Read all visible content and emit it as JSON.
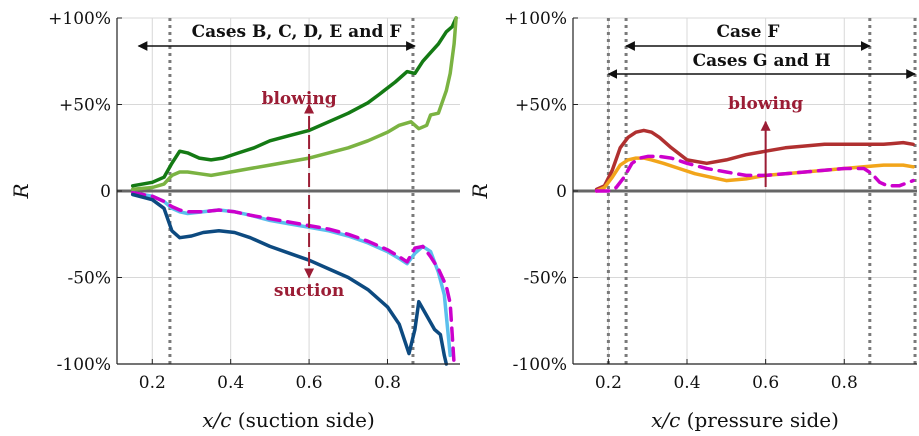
{
  "chart_data": [
    {
      "type": "line",
      "xlabel": "x/c (suction side)",
      "ylabel": "R",
      "xlim": [
        0.11,
        0.985
      ],
      "ylim": [
        -100,
        100
      ],
      "xticks": [
        "0.2",
        "0.4",
        "0.6",
        "0.8"
      ],
      "yticks": [
        "+100%",
        "+50%",
        "0",
        "-50%",
        "-100%"
      ],
      "grid": true,
      "vlines": [
        0.245,
        0.865
      ],
      "span_label": "Cases B, C, D, E and F",
      "span": [
        0.165,
        0.87
      ],
      "annotations": {
        "upper": "blowing",
        "lower": "suction",
        "arrow_x": 0.6
      },
      "series": [
        {
          "color": "#147a14",
          "x": [
            0.15,
            0.2,
            0.23,
            0.25,
            0.27,
            0.29,
            0.32,
            0.35,
            0.38,
            0.42,
            0.46,
            0.5,
            0.55,
            0.6,
            0.65,
            0.7,
            0.75,
            0.78,
            0.82,
            0.85,
            0.87,
            0.89,
            0.91,
            0.93,
            0.95,
            0.965,
            0.975
          ],
          "y": [
            3,
            5,
            8,
            16,
            23,
            22,
            19,
            18,
            19,
            22,
            25,
            29,
            32,
            35,
            40,
            45,
            51,
            56,
            63,
            69,
            68,
            75,
            80,
            85,
            92,
            95,
            100
          ]
        },
        {
          "color": "#7bb342",
          "x": [
            0.15,
            0.2,
            0.23,
            0.25,
            0.27,
            0.29,
            0.32,
            0.35,
            0.4,
            0.45,
            0.5,
            0.55,
            0.6,
            0.65,
            0.7,
            0.75,
            0.8,
            0.83,
            0.86,
            0.88,
            0.9,
            0.91,
            0.93,
            0.95,
            0.96,
            0.97,
            0.975
          ],
          "y": [
            1,
            2,
            4,
            9,
            11,
            11,
            10,
            9,
            11,
            13,
            15,
            17,
            19,
            22,
            25,
            29,
            34,
            38,
            40,
            36,
            38,
            44,
            45,
            58,
            68,
            85,
            100
          ]
        },
        {
          "color": "#5bbfec",
          "x": [
            0.15,
            0.2,
            0.23,
            0.25,
            0.27,
            0.29,
            0.33,
            0.37,
            0.41,
            0.45,
            0.5,
            0.55,
            0.6,
            0.65,
            0.7,
            0.75,
            0.8,
            0.83,
            0.85,
            0.87,
            0.89,
            0.91,
            0.93,
            0.945,
            0.96
          ],
          "y": [
            -1,
            -3,
            -6,
            -10,
            -12,
            -13,
            -12,
            -11,
            -12,
            -14,
            -17,
            -19,
            -21,
            -23,
            -26,
            -30,
            -35,
            -39,
            -42,
            -36,
            -32,
            -35,
            -47,
            -60,
            -95
          ]
        },
        {
          "color": "#cc00cc",
          "dashed": true,
          "x": [
            0.15,
            0.2,
            0.23,
            0.25,
            0.27,
            0.29,
            0.33,
            0.37,
            0.41,
            0.45,
            0.5,
            0.55,
            0.6,
            0.65,
            0.7,
            0.75,
            0.8,
            0.83,
            0.85,
            0.87,
            0.89,
            0.91,
            0.93,
            0.95,
            0.96,
            0.97
          ],
          "y": [
            -1,
            -3,
            -6,
            -9,
            -11,
            -12,
            -12,
            -11,
            -12,
            -14,
            -16,
            -18,
            -20,
            -22,
            -25,
            -29,
            -34,
            -38,
            -41,
            -33,
            -32,
            -38,
            -45,
            -55,
            -65,
            -100
          ]
        },
        {
          "color": "#0d4a80",
          "x": [
            0.15,
            0.2,
            0.23,
            0.25,
            0.27,
            0.3,
            0.33,
            0.37,
            0.41,
            0.45,
            0.5,
            0.55,
            0.6,
            0.65,
            0.7,
            0.75,
            0.8,
            0.83,
            0.855,
            0.87,
            0.88,
            0.9,
            0.92,
            0.935,
            0.945,
            0.95
          ],
          "y": [
            -2,
            -5,
            -10,
            -23,
            -27,
            -26,
            -24,
            -23,
            -24,
            -27,
            -32,
            -36,
            -40,
            -45,
            -50,
            -57,
            -67,
            -77,
            -94,
            -80,
            -64,
            -72,
            -80,
            -83,
            -95,
            -100
          ]
        }
      ]
    },
    {
      "type": "line",
      "xlabel": "x/c (pressure side)",
      "ylabel": "R",
      "xlim": [
        0.11,
        0.985
      ],
      "ylim": [
        -100,
        100
      ],
      "xticks": [
        "0.2",
        "0.4",
        "0.6",
        "0.8"
      ],
      "yticks": [
        "+100%",
        "+50%",
        "0",
        "-50%",
        "-100%"
      ],
      "grid": true,
      "vlines": [
        0.2,
        0.245,
        0.865,
        0.98
      ],
      "spans": [
        {
          "label": "Case F",
          "range": [
            0.245,
            0.865
          ]
        },
        {
          "label": "Cases G and H",
          "range": [
            0.2,
            0.98
          ]
        }
      ],
      "annotations": {
        "upper": "blowing",
        "arrow_x": 0.6
      },
      "series": [
        {
          "color": "#b03030",
          "x": [
            0.17,
            0.19,
            0.21,
            0.23,
            0.25,
            0.27,
            0.29,
            0.31,
            0.33,
            0.36,
            0.4,
            0.45,
            0.5,
            0.55,
            0.6,
            0.65,
            0.7,
            0.75,
            0.8,
            0.85,
            0.9,
            0.95,
            0.975
          ],
          "y": [
            1,
            3,
            12,
            25,
            31,
            34,
            35,
            34,
            31,
            25,
            18,
            16,
            18,
            21,
            23,
            25,
            26,
            27,
            27,
            27,
            27,
            28,
            27
          ]
        },
        {
          "color": "#f2a51a",
          "x": [
            0.17,
            0.19,
            0.21,
            0.23,
            0.25,
            0.27,
            0.29,
            0.31,
            0.34,
            0.38,
            0.42,
            0.46,
            0.5,
            0.55,
            0.6,
            0.65,
            0.7,
            0.75,
            0.8,
            0.85,
            0.9,
            0.95,
            0.975
          ],
          "y": [
            0,
            2,
            8,
            15,
            18,
            19,
            19,
            18,
            16,
            13,
            10,
            8,
            6,
            7,
            9,
            10,
            11,
            12,
            13,
            14,
            15,
            15,
            14
          ]
        },
        {
          "color": "#cc00cc",
          "dashed": true,
          "x": [
            0.17,
            0.2,
            0.22,
            0.24,
            0.26,
            0.28,
            0.3,
            0.33,
            0.36,
            0.4,
            0.45,
            0.5,
            0.55,
            0.6,
            0.65,
            0.7,
            0.75,
            0.8,
            0.85,
            0.87,
            0.89,
            0.91,
            0.94,
            0.975
          ],
          "y": [
            0,
            0,
            2,
            8,
            16,
            19,
            20,
            20,
            19,
            16,
            13,
            11,
            9,
            9,
            10,
            11,
            12,
            13,
            13,
            10,
            5,
            3,
            3,
            6
          ]
        }
      ]
    }
  ]
}
